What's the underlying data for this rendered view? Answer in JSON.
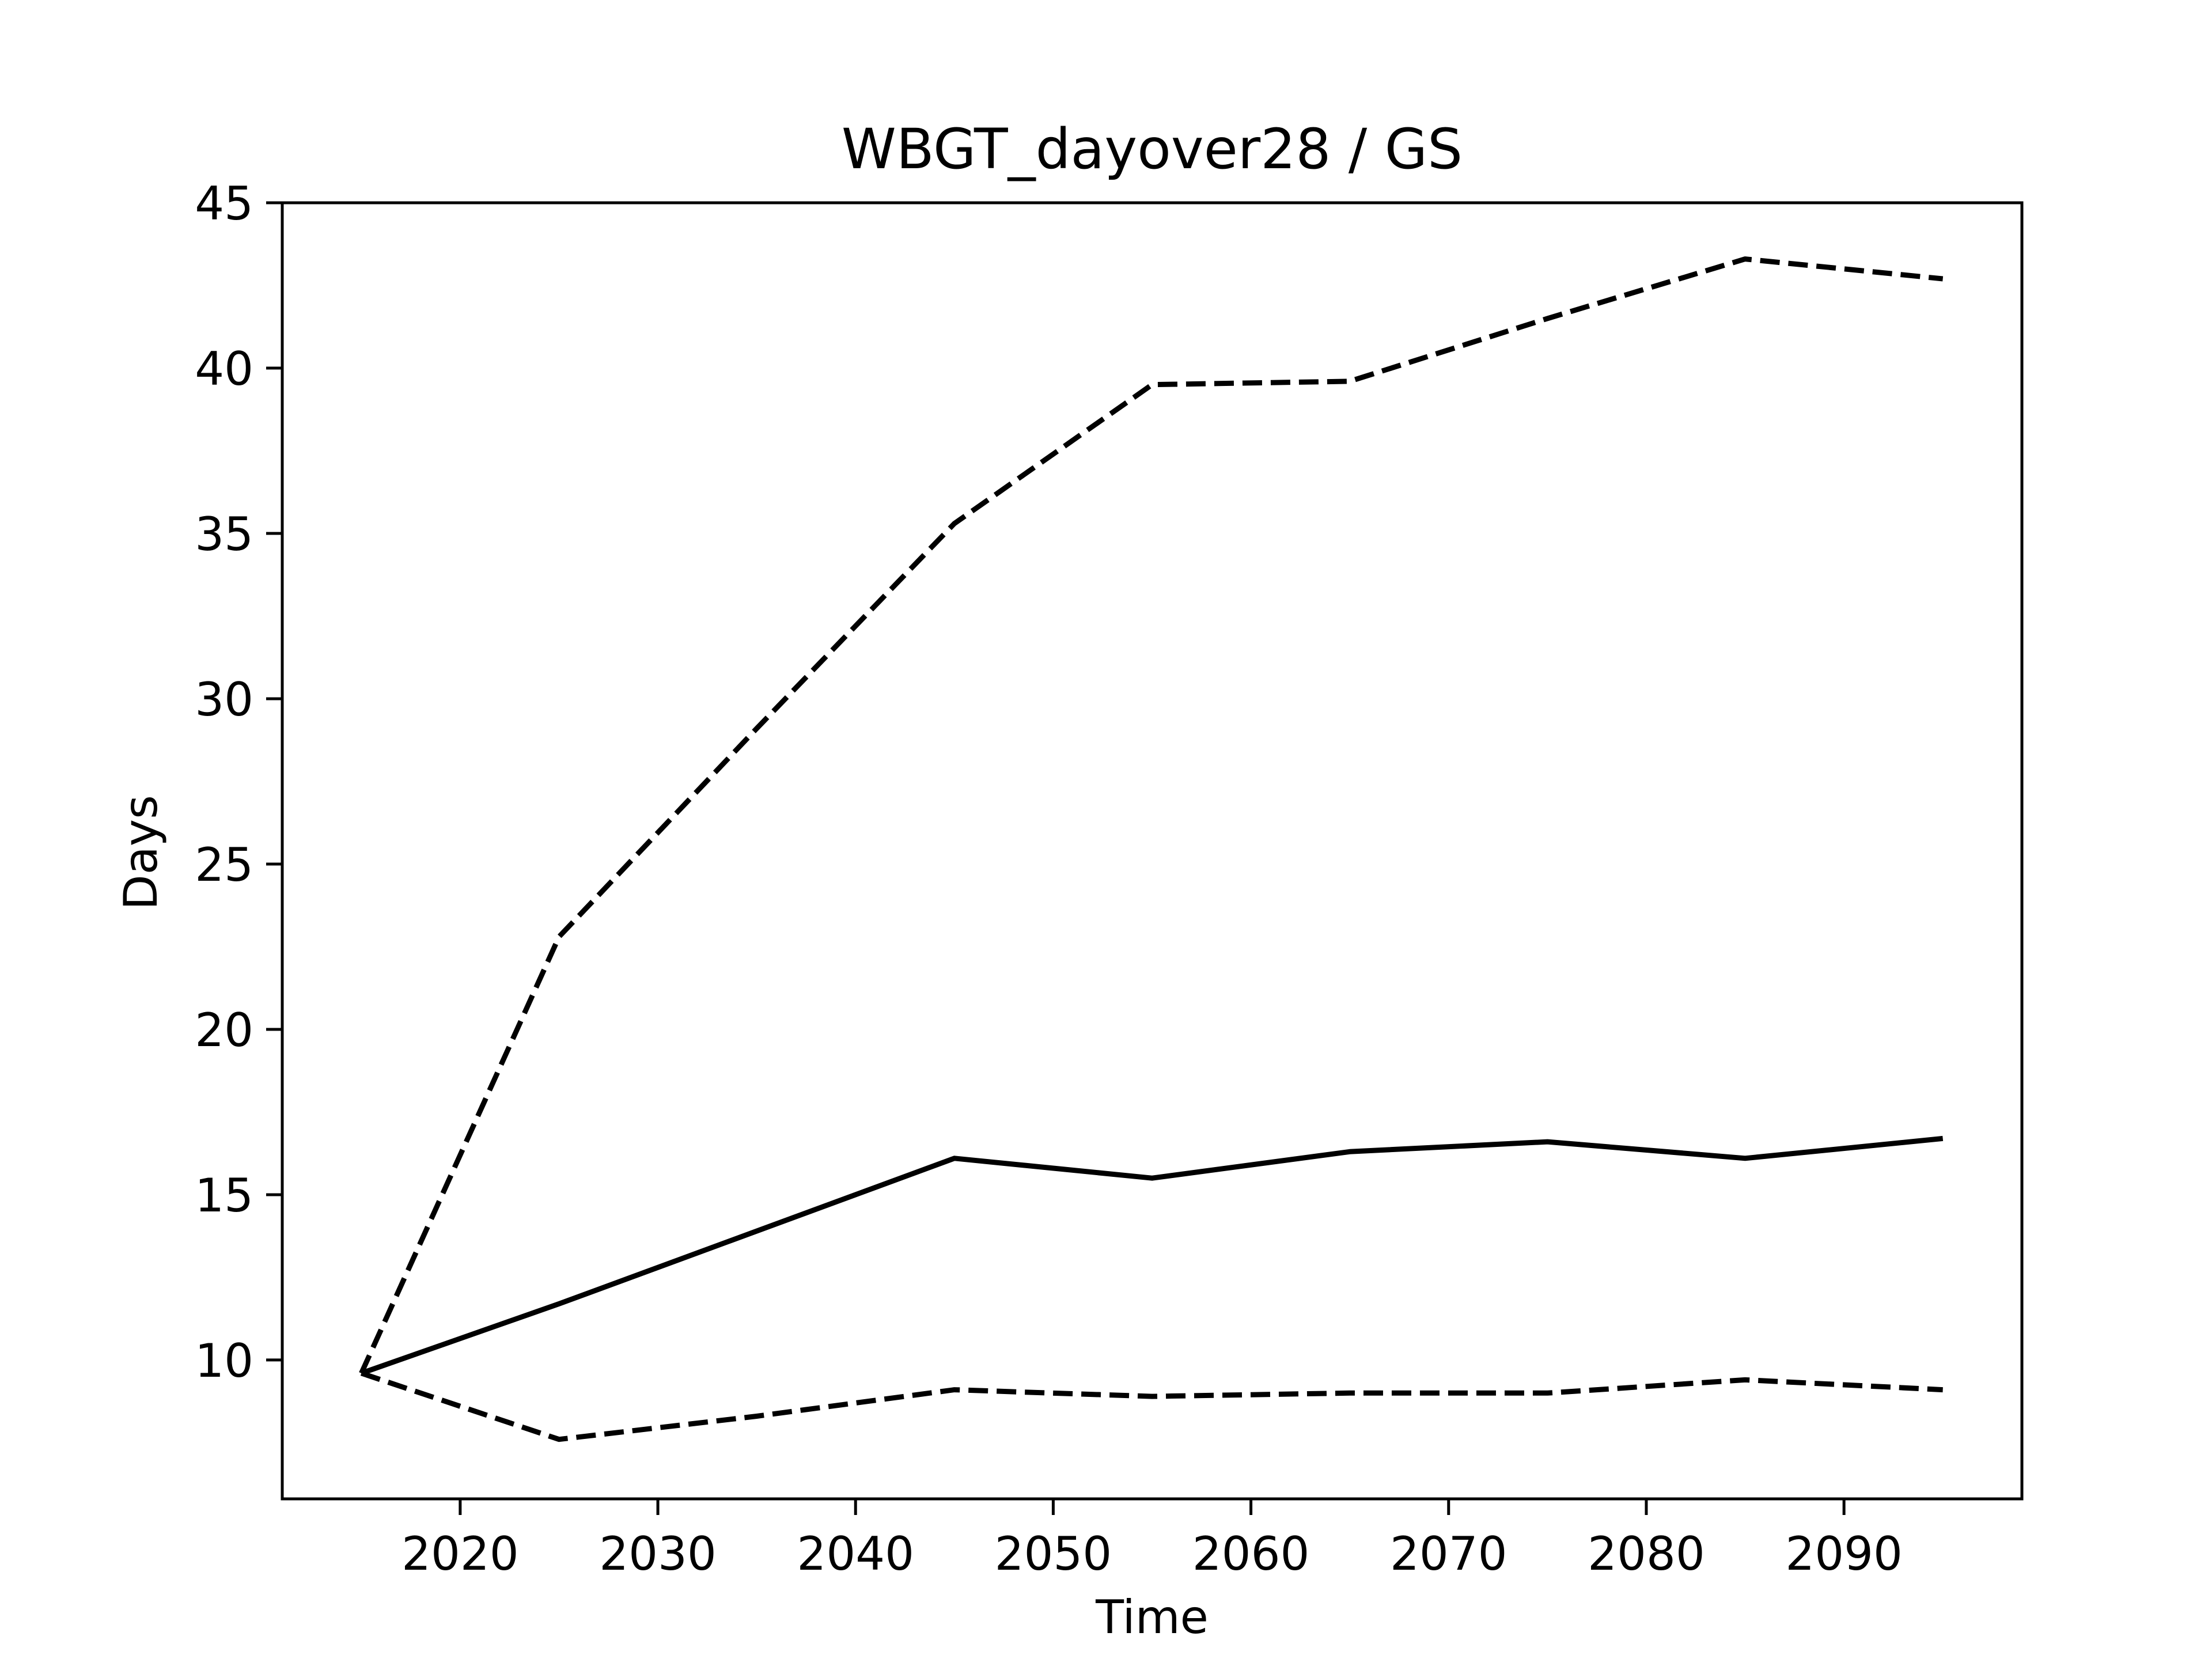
{
  "chart_data": {
    "type": "line",
    "title": "WBGT_dayover28 / GS",
    "xlabel": "Time",
    "ylabel": "Days",
    "xlim": [
      2011,
      2099
    ],
    "ylim": [
      5.8,
      45
    ],
    "xticks": [
      2020,
      2030,
      2040,
      2050,
      2060,
      2070,
      2080,
      2090
    ],
    "yticks": [
      10,
      15,
      20,
      25,
      30,
      35,
      40,
      45
    ],
    "grid": false,
    "legend": "none",
    "x": [
      2015,
      2025,
      2035,
      2045,
      2055,
      2065,
      2075,
      2085,
      2095
    ],
    "series": [
      {
        "style": "solid",
        "color": "#000000",
        "values": [
          9.6,
          11.7,
          13.9,
          16.1,
          15.5,
          16.3,
          16.6,
          16.1,
          16.7
        ]
      },
      {
        "style": "dashed",
        "color": "#000000",
        "values": [
          9.6,
          22.8,
          29.1,
          35.3,
          39.5,
          39.6,
          41.5,
          43.3,
          42.7
        ]
      },
      {
        "style": "dashed",
        "color": "#000000",
        "values": [
          9.6,
          7.6,
          8.3,
          9.1,
          8.9,
          9.0,
          9.0,
          9.4,
          9.1
        ]
      }
    ]
  }
}
